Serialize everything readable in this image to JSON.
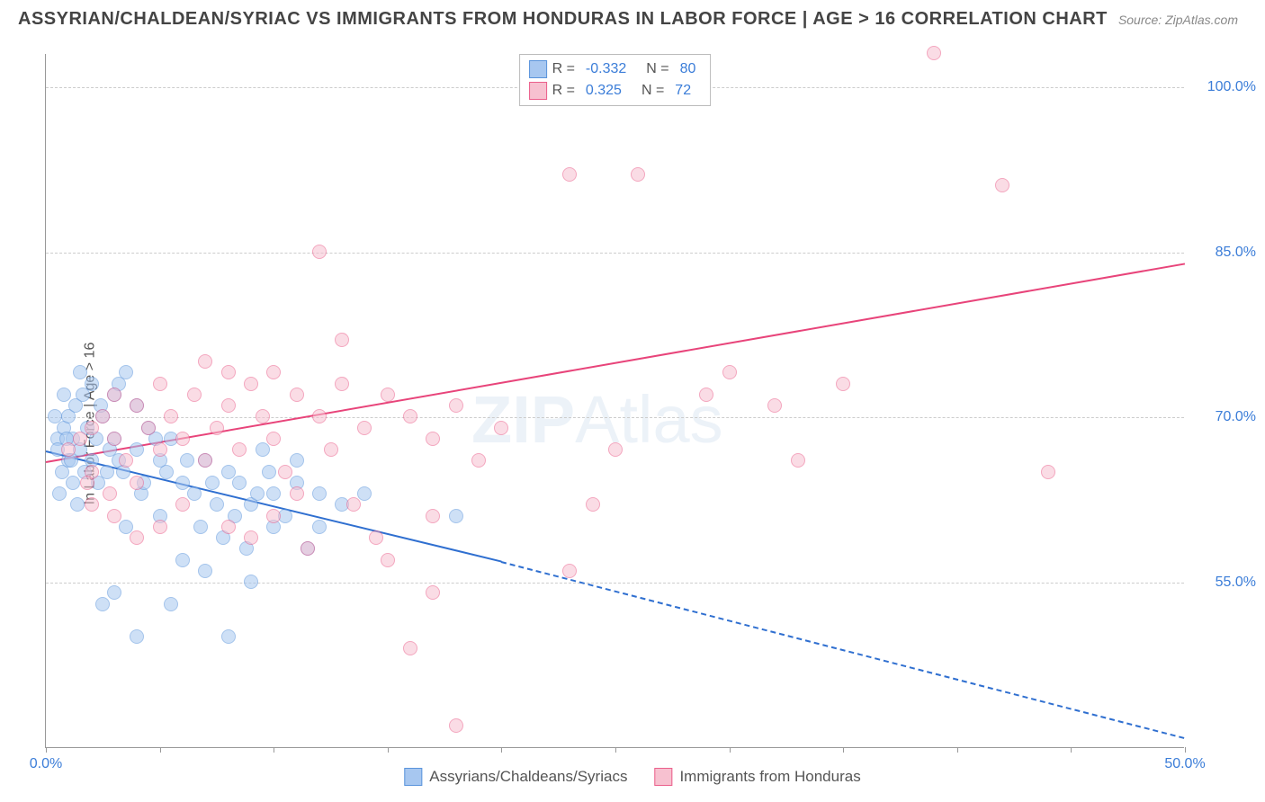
{
  "title": "ASSYRIAN/CHALDEAN/SYRIAC VS IMMIGRANTS FROM HONDURAS IN LABOR FORCE | AGE > 16 CORRELATION CHART",
  "source": "Source: ZipAtlas.com",
  "ylabel": "In Labor Force | Age > 16",
  "watermark_bold": "ZIP",
  "watermark_light": "Atlas",
  "chart": {
    "type": "scatter",
    "xlim": [
      0,
      50
    ],
    "ylim": [
      40,
      103
    ],
    "xtick_major": [
      0,
      50
    ],
    "xtick_minor": [
      5,
      10,
      15,
      20,
      25,
      30,
      35,
      40,
      45
    ],
    "yticks": [
      55,
      70,
      85,
      100
    ],
    "x_tick_labels": {
      "0": "0.0%",
      "50": "50.0%"
    },
    "y_tick_labels": {
      "55": "55.0%",
      "70": "70.0%",
      "85": "85.0%",
      "100": "100.0%"
    },
    "background_color": "#ffffff",
    "grid_color": "#cccccc",
    "axis_color": "#999999",
    "tick_label_color": "#3b7dd8",
    "series": [
      {
        "name": "Assyrians/Chaldeans/Syriacs",
        "fill": "#a7c7f0",
        "stroke": "#5a94db",
        "fill_opacity": 0.55,
        "marker_size": 16,
        "R": "-0.332",
        "N": "80",
        "trend": {
          "x1": 0,
          "y1": 67,
          "x2": 20,
          "y2": 57,
          "color": "#2f6fd0",
          "dash_x2": 50,
          "dash_y2": 41
        },
        "points": [
          [
            0.5,
            68
          ],
          [
            0.5,
            67
          ],
          [
            0.7,
            65
          ],
          [
            0.8,
            69
          ],
          [
            1,
            66
          ],
          [
            1,
            70
          ],
          [
            0.6,
            63
          ],
          [
            1.2,
            68
          ],
          [
            1.3,
            71
          ],
          [
            1.5,
            74
          ],
          [
            1.5,
            67
          ],
          [
            1.2,
            64
          ],
          [
            1.4,
            62
          ],
          [
            1.8,
            69
          ],
          [
            2,
            66
          ],
          [
            2,
            73
          ],
          [
            2.2,
            68
          ],
          [
            2.5,
            70
          ],
          [
            2.7,
            65
          ],
          [
            3,
            72
          ],
          [
            3,
            68
          ],
          [
            3.2,
            66
          ],
          [
            3.5,
            60
          ],
          [
            3.5,
            74
          ],
          [
            4,
            71
          ],
          [
            4,
            67
          ],
          [
            4.2,
            63
          ],
          [
            4.5,
            69
          ],
          [
            5,
            66
          ],
          [
            5,
            61
          ],
          [
            5.5,
            68
          ],
          [
            5.5,
            53
          ],
          [
            6,
            64
          ],
          [
            6,
            57
          ],
          [
            6.5,
            63
          ],
          [
            7,
            66
          ],
          [
            7,
            56
          ],
          [
            7.5,
            62
          ],
          [
            8,
            50
          ],
          [
            8,
            65
          ],
          [
            8.5,
            64
          ],
          [
            9,
            55
          ],
          [
            9,
            62
          ],
          [
            9.5,
            67
          ],
          [
            10,
            63
          ],
          [
            10,
            60
          ],
          [
            11,
            64
          ],
          [
            11.5,
            58
          ],
          [
            12,
            63
          ],
          [
            13,
            62
          ],
          [
            14,
            63
          ],
          [
            18,
            61
          ],
          [
            2.5,
            53
          ],
          [
            4,
            50
          ],
          [
            3,
            54
          ],
          [
            0.8,
            72
          ],
          [
            1.6,
            72
          ],
          [
            2.4,
            71
          ],
          [
            3.2,
            73
          ],
          [
            0.4,
            70
          ],
          [
            0.9,
            68
          ],
          [
            1.1,
            66
          ],
          [
            1.7,
            65
          ],
          [
            2.3,
            64
          ],
          [
            2.8,
            67
          ],
          [
            3.4,
            65
          ],
          [
            4.3,
            64
          ],
          [
            4.8,
            68
          ],
          [
            5.3,
            65
          ],
          [
            6.2,
            66
          ],
          [
            6.8,
            60
          ],
          [
            7.3,
            64
          ],
          [
            7.8,
            59
          ],
          [
            8.3,
            61
          ],
          [
            8.8,
            58
          ],
          [
            9.3,
            63
          ],
          [
            9.8,
            65
          ],
          [
            10.5,
            61
          ],
          [
            11,
            66
          ],
          [
            12,
            60
          ]
        ]
      },
      {
        "name": "Immigrants from Honduras",
        "fill": "#f7c1d0",
        "stroke": "#eb5f8b",
        "fill_opacity": 0.55,
        "marker_size": 16,
        "R": "0.325",
        "N": "72",
        "trend": {
          "x1": 0,
          "y1": 66,
          "x2": 50,
          "y2": 84,
          "color": "#e8447a"
        },
        "points": [
          [
            1,
            67
          ],
          [
            1.5,
            68
          ],
          [
            2,
            69
          ],
          [
            2,
            65
          ],
          [
            2.5,
            70
          ],
          [
            3,
            68
          ],
          [
            3,
            72
          ],
          [
            3.5,
            66
          ],
          [
            4,
            71
          ],
          [
            4,
            64
          ],
          [
            4.5,
            69
          ],
          [
            5,
            73
          ],
          [
            5,
            67
          ],
          [
            5.5,
            70
          ],
          [
            6,
            68
          ],
          [
            6.5,
            72
          ],
          [
            7,
            66
          ],
          [
            7,
            75
          ],
          [
            7.5,
            69
          ],
          [
            8,
            71
          ],
          [
            8,
            74
          ],
          [
            8.5,
            67
          ],
          [
            9,
            73
          ],
          [
            9.5,
            70
          ],
          [
            10,
            68
          ],
          [
            10,
            74
          ],
          [
            10.5,
            65
          ],
          [
            11,
            72
          ],
          [
            11.5,
            58
          ],
          [
            12,
            70
          ],
          [
            12,
            85
          ],
          [
            12.5,
            67
          ],
          [
            13,
            73
          ],
          [
            13,
            77
          ],
          [
            13.5,
            62
          ],
          [
            14,
            69
          ],
          [
            14.5,
            59
          ],
          [
            15,
            72
          ],
          [
            15,
            57
          ],
          [
            16,
            70
          ],
          [
            16,
            49
          ],
          [
            17,
            68
          ],
          [
            17,
            61
          ],
          [
            17,
            54
          ],
          [
            18,
            71
          ],
          [
            18,
            42
          ],
          [
            19,
            66
          ],
          [
            20,
            69
          ],
          [
            23,
            92
          ],
          [
            23,
            56
          ],
          [
            24,
            62
          ],
          [
            25,
            67
          ],
          [
            26,
            92
          ],
          [
            29,
            72
          ],
          [
            30,
            74
          ],
          [
            32,
            71
          ],
          [
            33,
            66
          ],
          [
            35,
            73
          ],
          [
            39,
            103
          ],
          [
            42,
            91
          ],
          [
            44,
            65
          ],
          [
            9,
            59
          ],
          [
            10,
            61
          ],
          [
            11,
            63
          ],
          [
            8,
            60
          ],
          [
            6,
            62
          ],
          [
            5,
            60
          ],
          [
            4,
            59
          ],
          [
            3,
            61
          ],
          [
            2,
            62
          ],
          [
            1.8,
            64
          ],
          [
            2.8,
            63
          ]
        ]
      }
    ]
  },
  "legend_top": [
    {
      "sq_fill": "#a7c7f0",
      "sq_stroke": "#5a94db",
      "r_label": "R =",
      "r_val": "-0.332",
      "n_label": "N =",
      "n_val": "80"
    },
    {
      "sq_fill": "#f7c1d0",
      "sq_stroke": "#eb5f8b",
      "r_label": "R =",
      "r_val": "0.325",
      "n_label": "N =",
      "n_val": "72"
    }
  ],
  "legend_bottom": [
    {
      "sq_fill": "#a7c7f0",
      "sq_stroke": "#5a94db",
      "label": "Assyrians/Chaldeans/Syriacs"
    },
    {
      "sq_fill": "#f7c1d0",
      "sq_stroke": "#eb5f8b",
      "label": "Immigrants from Honduras"
    }
  ]
}
